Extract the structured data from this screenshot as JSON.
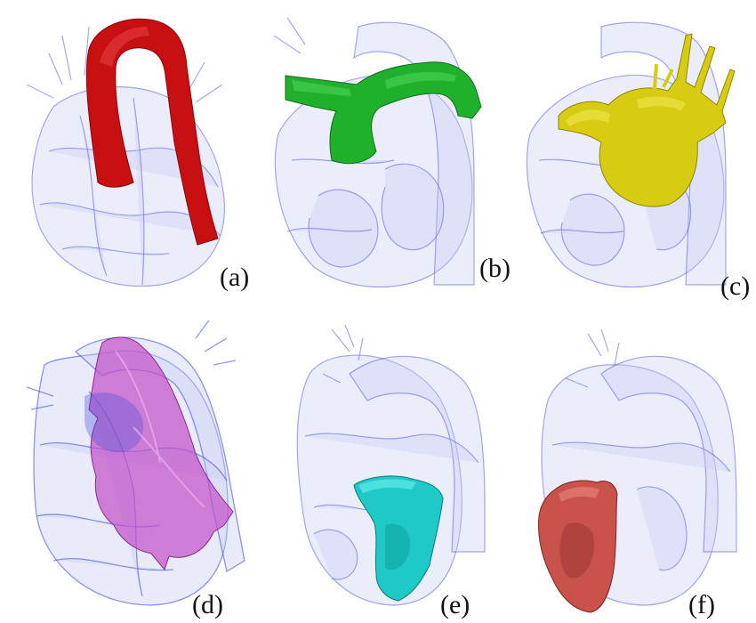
{
  "figure": {
    "panels": [
      {
        "label": "(a)",
        "highlight": "aorta",
        "highlight_color": "#c80f12"
      },
      {
        "label": "(b)",
        "highlight": "pulmonary-artery",
        "highlight_color": "#1fb02c"
      },
      {
        "label": "(c)",
        "highlight": "left-atrium",
        "highlight_color": "#d8cc12"
      },
      {
        "label": "(d)",
        "highlight": "right-atrium",
        "highlight_color": "#c24fc8"
      },
      {
        "label": "(e)",
        "highlight": "left-ventricle",
        "highlight_color": "#1ec9c6"
      },
      {
        "label": "(f)",
        "highlight": "right-ventricle",
        "highlight_color": "#c9524c"
      }
    ],
    "mesh_color": "#5a62e0"
  }
}
